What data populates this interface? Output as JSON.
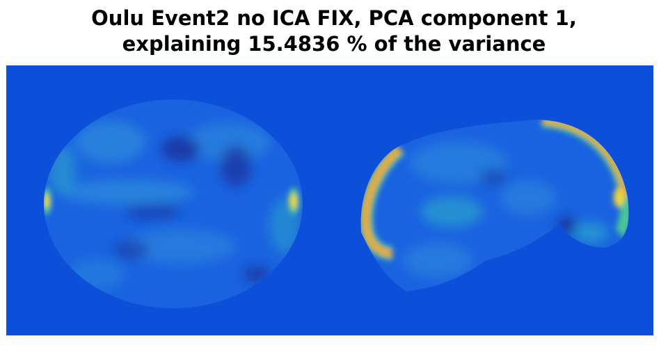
{
  "figure": {
    "title_line1": "Oulu Event2 no ICA FIX, PCA component 1,",
    "title_line2": "explaining 15.4836 % of the variance",
    "colors": {
      "background": "#0c4fd8",
      "slice_base": "#1a63e0",
      "dark_patch": "#1a2f9a",
      "mid_patch": "#2d8bdc",
      "cyan_patch": "#2fb2c8",
      "green_patch": "#4cc49a",
      "yellow_hot": "#f3d73a",
      "orange_hot": "#e9a82e"
    },
    "panels": [
      {
        "name": "axial slice",
        "description_hidden": true
      },
      {
        "name": "sagittal slice",
        "description_hidden": true
      }
    ]
  }
}
